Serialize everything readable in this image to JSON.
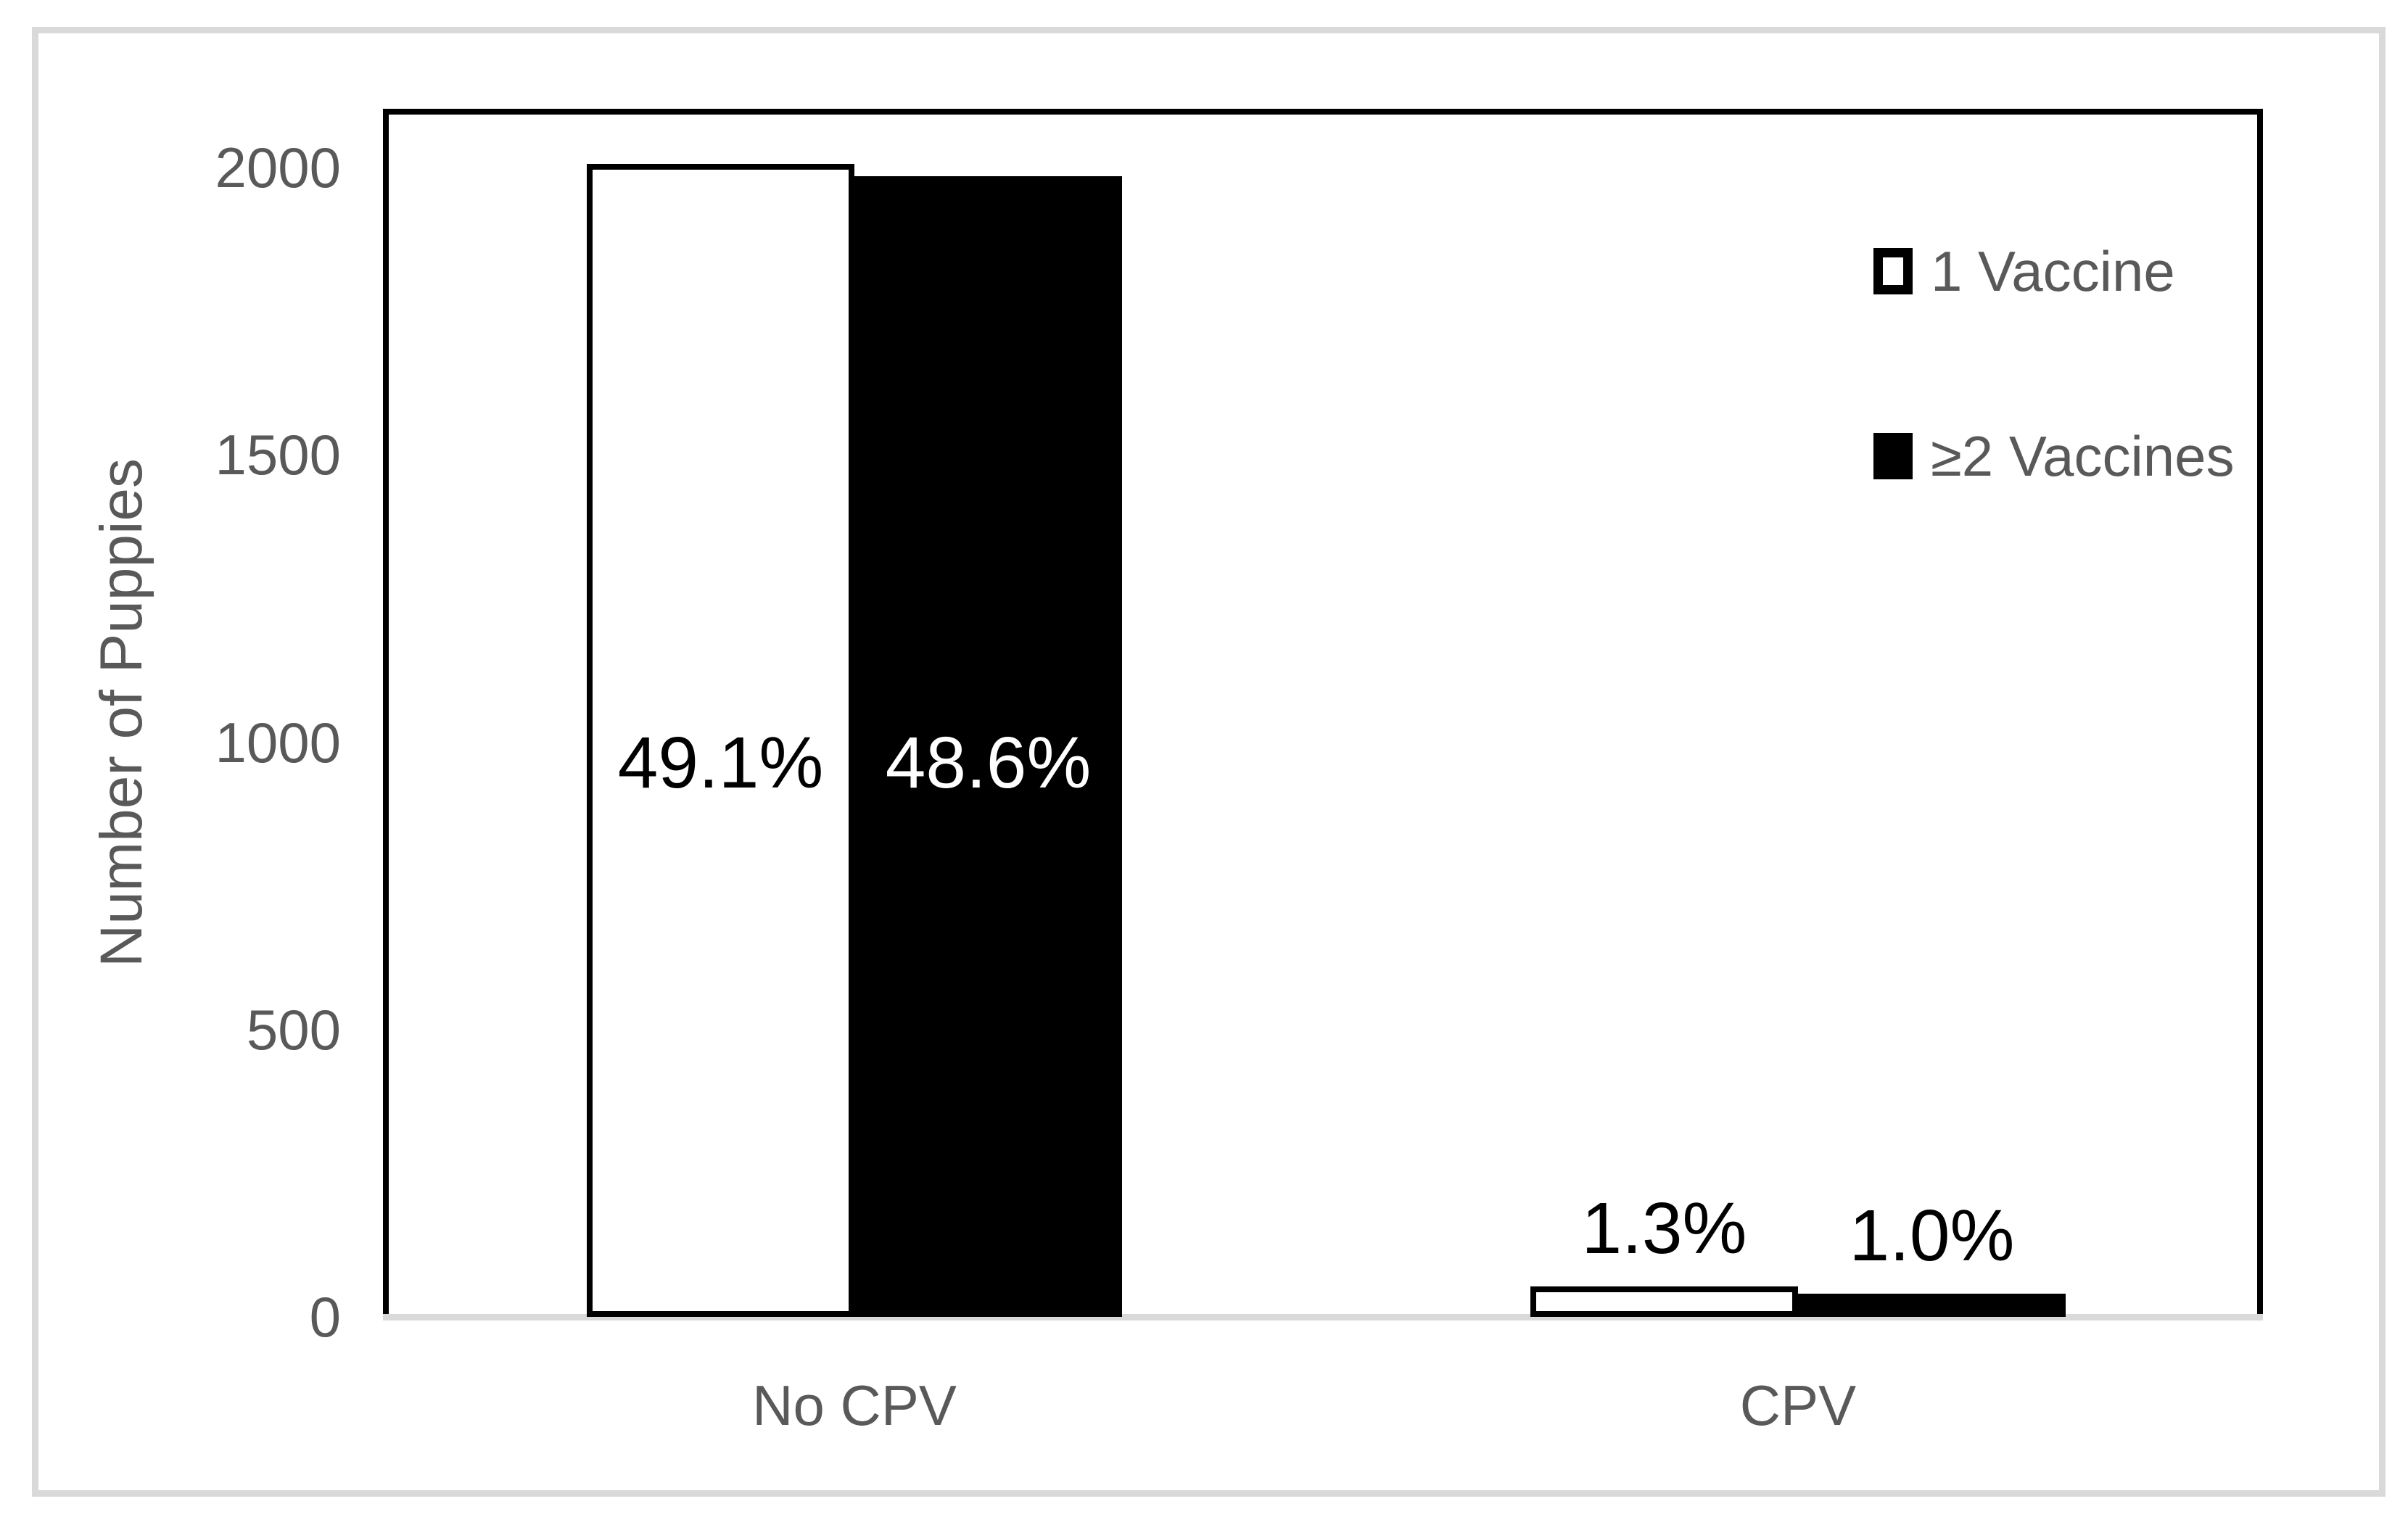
{
  "chart_data": {
    "type": "bar",
    "title": "",
    "categories": [
      "No CPV",
      "CPV"
    ],
    "series": [
      {
        "name": "1 Vaccine",
        "fill": "#ffffff",
        "outline": "#000000",
        "values": [
          2006,
          53
        ],
        "data_labels": [
          "49.1%",
          "1.3%"
        ]
      },
      {
        "name": "≥2 Vaccines",
        "fill": "#000000",
        "outline": "#000000",
        "values": [
          1985,
          41
        ],
        "data_labels": [
          "48.6%",
          "1.0%"
        ]
      }
    ],
    "xlabel": "",
    "ylabel": "Number of Puppies",
    "yticks": [
      0,
      500,
      1000,
      1500,
      2000
    ],
    "ylim": [
      0,
      2100
    ],
    "grid": false,
    "legend_position": "top-right-inside",
    "bar_orientation": "vertical"
  },
  "colors": {
    "axis_text": "#595959",
    "data_label_on_white": "#000000",
    "data_label_on_black": "#ffffff",
    "plot_border": "#000000",
    "x_axis_line": "#d9d9d9",
    "figure_border": "#d9d9d9",
    "background": "#ffffff"
  },
  "legend": {
    "entries": [
      {
        "label": "1 Vaccine",
        "marker": "white-square-black-border"
      },
      {
        "label": "≥2 Vaccines",
        "marker": "black-filled-square"
      }
    ]
  }
}
